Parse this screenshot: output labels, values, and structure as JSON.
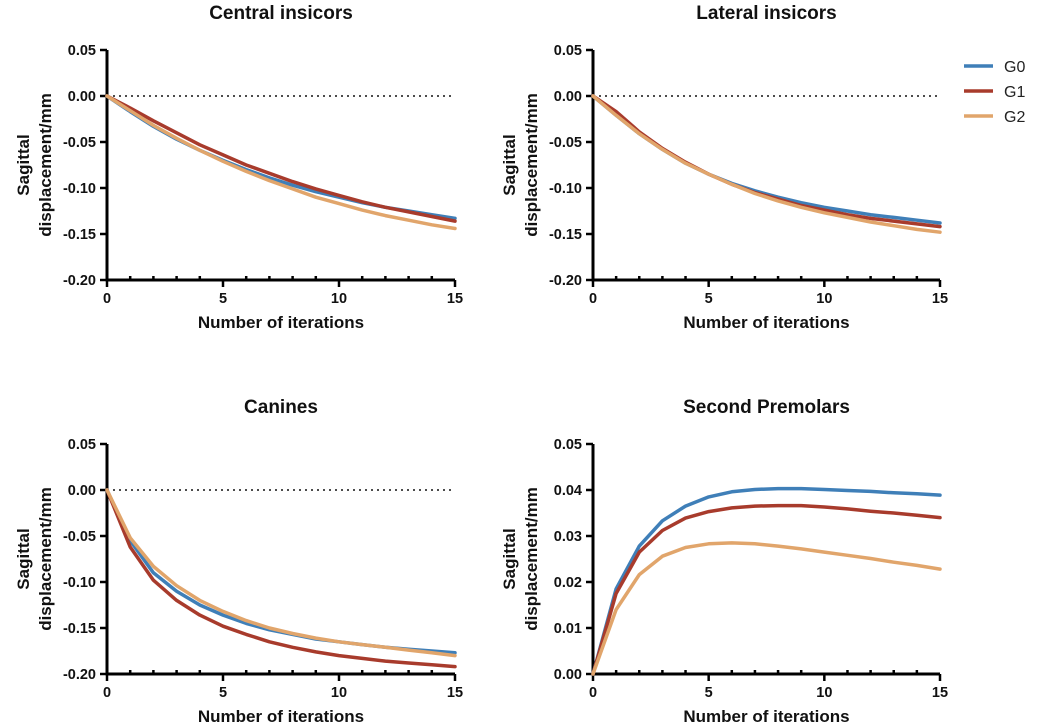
{
  "colors": {
    "G0": "#3f7fb8",
    "G1": "#a83b2c",
    "G2": "#e1a56b"
  },
  "legend": [
    {
      "name": "G0",
      "color": "#3f7fb8"
    },
    {
      "name": "G1",
      "color": "#a83b2c"
    },
    {
      "name": "G2",
      "color": "#e1a56b"
    }
  ],
  "chart_data": [
    {
      "type": "line",
      "title": "Central insicors",
      "xlabel": "Number of iterations",
      "ylabel": [
        "Sagittal",
        "displacement/mm"
      ],
      "xlim": [
        0,
        15
      ],
      "ylim": [
        -0.2,
        0.05
      ],
      "xticks": [
        0,
        5,
        10,
        15
      ],
      "xtick_labels": [
        "0",
        "5",
        "10",
        "15"
      ],
      "yticks": [
        0.05,
        0.0,
        -0.05,
        -0.1,
        -0.15,
        -0.2
      ],
      "ytick_labels": [
        "0.05",
        "0.00",
        "-0.05",
        "-0.10",
        "-0.15",
        "-0.20"
      ],
      "zero_line": true,
      "x": [
        0,
        1,
        2,
        3,
        4,
        5,
        6,
        7,
        8,
        9,
        10,
        11,
        12,
        13,
        14,
        15
      ],
      "series": [
        {
          "name": "G0",
          "values": [
            0.0,
            -0.017,
            -0.033,
            -0.047,
            -0.059,
            -0.07,
            -0.08,
            -0.089,
            -0.097,
            -0.104,
            -0.11,
            -0.116,
            -0.121,
            -0.125,
            -0.129,
            -0.133
          ]
        },
        {
          "name": "G1",
          "values": [
            0.0,
            -0.013,
            -0.027,
            -0.04,
            -0.053,
            -0.064,
            -0.075,
            -0.084,
            -0.093,
            -0.101,
            -0.108,
            -0.115,
            -0.121,
            -0.126,
            -0.131,
            -0.136
          ]
        },
        {
          "name": "G2",
          "values": [
            0.0,
            -0.016,
            -0.032,
            -0.046,
            -0.059,
            -0.071,
            -0.082,
            -0.092,
            -0.101,
            -0.11,
            -0.117,
            -0.124,
            -0.13,
            -0.135,
            -0.14,
            -0.144
          ]
        }
      ]
    },
    {
      "type": "line",
      "title": "Lateral insicors",
      "xlabel": "Number of iterations",
      "ylabel": [
        "Sagittal",
        "displacement/mm"
      ],
      "xlim": [
        0,
        15
      ],
      "ylim": [
        -0.2,
        0.05
      ],
      "xticks": [
        0,
        5,
        10,
        15
      ],
      "xtick_labels": [
        "0",
        "5",
        "10",
        "15"
      ],
      "yticks": [
        0.05,
        0.0,
        -0.05,
        -0.1,
        -0.15,
        -0.2
      ],
      "ytick_labels": [
        "0.05",
        "0.00",
        "-0.05",
        "-0.10",
        "-0.15",
        "-0.20"
      ],
      "zero_line": true,
      "x": [
        0,
        1,
        2,
        3,
        4,
        5,
        6,
        7,
        8,
        9,
        10,
        11,
        12,
        13,
        14,
        15
      ],
      "series": [
        {
          "name": "G0",
          "values": [
            0.0,
            -0.021,
            -0.041,
            -0.058,
            -0.073,
            -0.085,
            -0.095,
            -0.103,
            -0.11,
            -0.116,
            -0.121,
            -0.125,
            -0.129,
            -0.132,
            -0.135,
            -0.138
          ]
        },
        {
          "name": "G1",
          "values": [
            0.0,
            -0.017,
            -0.039,
            -0.057,
            -0.072,
            -0.085,
            -0.096,
            -0.105,
            -0.112,
            -0.119,
            -0.124,
            -0.129,
            -0.133,
            -0.136,
            -0.139,
            -0.142
          ]
        },
        {
          "name": "G2",
          "values": [
            0.0,
            -0.021,
            -0.041,
            -0.058,
            -0.073,
            -0.085,
            -0.096,
            -0.106,
            -0.114,
            -0.121,
            -0.127,
            -0.132,
            -0.137,
            -0.141,
            -0.145,
            -0.148
          ]
        }
      ]
    },
    {
      "type": "line",
      "title": "Canines",
      "xlabel": "Number of iterations",
      "ylabel": [
        "Sagittal",
        "displacement/mm"
      ],
      "xlim": [
        0,
        15
      ],
      "ylim": [
        -0.2,
        0.05
      ],
      "xticks": [
        0,
        5,
        10,
        15
      ],
      "xtick_labels": [
        "0",
        "5",
        "10",
        "15"
      ],
      "yticks": [
        0.05,
        0.0,
        -0.05,
        -0.1,
        -0.15,
        -0.2
      ],
      "ytick_labels": [
        "0.05",
        "0.00",
        "-0.05",
        "-0.10",
        "-0.15",
        "-0.20"
      ],
      "zero_line": true,
      "x": [
        0,
        1,
        2,
        3,
        4,
        5,
        6,
        7,
        8,
        9,
        10,
        11,
        12,
        13,
        14,
        15
      ],
      "series": [
        {
          "name": "G0",
          "values": [
            0.0,
            -0.055,
            -0.09,
            -0.11,
            -0.125,
            -0.136,
            -0.145,
            -0.152,
            -0.157,
            -0.162,
            -0.165,
            -0.168,
            -0.171,
            -0.173,
            -0.175,
            -0.177
          ]
        },
        {
          "name": "G1",
          "values": [
            0.0,
            -0.062,
            -0.098,
            -0.12,
            -0.136,
            -0.148,
            -0.157,
            -0.165,
            -0.171,
            -0.176,
            -0.18,
            -0.183,
            -0.186,
            -0.188,
            -0.19,
            -0.192
          ]
        },
        {
          "name": "G2",
          "values": [
            0.0,
            -0.052,
            -0.083,
            -0.104,
            -0.12,
            -0.132,
            -0.142,
            -0.15,
            -0.156,
            -0.161,
            -0.165,
            -0.168,
            -0.171,
            -0.174,
            -0.177,
            -0.18
          ]
        }
      ]
    },
    {
      "type": "line",
      "title": "Second Premolars",
      "xlabel": "Number of iterations",
      "ylabel": [
        "Sagittal",
        "displacement/mm"
      ],
      "xlim": [
        0,
        15
      ],
      "ylim": [
        0.0,
        0.05
      ],
      "xticks": [
        0,
        5,
        10,
        15
      ],
      "xtick_labels": [
        "0",
        "5",
        "10",
        "15"
      ],
      "yticks": [
        0.05,
        0.04,
        0.03,
        0.02,
        0.01,
        0.0
      ],
      "ytick_labels": [
        "0.05",
        "0.04",
        "0.03",
        "0.02",
        "0.01",
        "0.00"
      ],
      "zero_line": false,
      "x": [
        0,
        1,
        2,
        3,
        4,
        5,
        6,
        7,
        8,
        9,
        10,
        11,
        12,
        13,
        14,
        15
      ],
      "series": [
        {
          "name": "G0",
          "values": [
            0.0,
            0.0185,
            0.0278,
            0.0333,
            0.0365,
            0.0385,
            0.0396,
            0.0401,
            0.0403,
            0.0403,
            0.0401,
            0.0399,
            0.0397,
            0.0394,
            0.0392,
            0.0389
          ]
        },
        {
          "name": "G1",
          "values": [
            0.0,
            0.0175,
            0.0265,
            0.0312,
            0.0339,
            0.0353,
            0.0361,
            0.0365,
            0.0366,
            0.0366,
            0.0363,
            0.0359,
            0.0354,
            0.035,
            0.0345,
            0.034
          ]
        },
        {
          "name": "G2",
          "values": [
            0.0,
            0.014,
            0.0216,
            0.0256,
            0.0275,
            0.0283,
            0.0285,
            0.0283,
            0.0278,
            0.0272,
            0.0265,
            0.0258,
            0.0251,
            0.0243,
            0.0236,
            0.0228
          ]
        }
      ]
    }
  ]
}
